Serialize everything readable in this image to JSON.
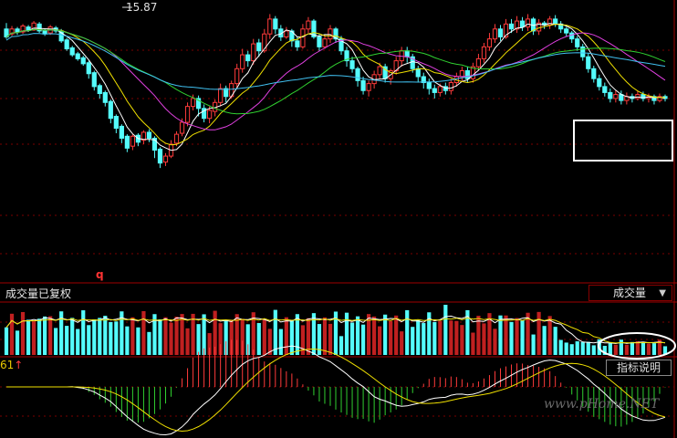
{
  "chart_data": {
    "type": "candlestick",
    "price_label": "15.87",
    "volume_title": "成交量已复权",
    "indicator_select": "成交量",
    "indicator_value": "61",
    "indicator_hint_label": "指标说明",
    "marker": "q",
    "watermark": "www.pHome.NET",
    "candles": [
      [
        150,
        142,
        156,
        140
      ],
      [
        145,
        150,
        153,
        143
      ],
      [
        150,
        147,
        152,
        144
      ],
      [
        147,
        153,
        155,
        145
      ],
      [
        152,
        149,
        154,
        147
      ],
      [
        149,
        156,
        158,
        148
      ],
      [
        155,
        148,
        157,
        146
      ],
      [
        148,
        145,
        150,
        143
      ],
      [
        146,
        152,
        154,
        144
      ],
      [
        151,
        148,
        153,
        146
      ],
      [
        148,
        138,
        150,
        136
      ],
      [
        139,
        130,
        141,
        128
      ],
      [
        131,
        124,
        133,
        122
      ],
      [
        125,
        120,
        127,
        118
      ],
      [
        121,
        115,
        123,
        113
      ],
      [
        116,
        105,
        118,
        100
      ],
      [
        106,
        92,
        108,
        88
      ],
      [
        93,
        85,
        95,
        80
      ],
      [
        86,
        76,
        88,
        72
      ],
      [
        77,
        60,
        79,
        55
      ],
      [
        62,
        50,
        64,
        45
      ],
      [
        52,
        40,
        54,
        35
      ],
      [
        42,
        30,
        44,
        26
      ],
      [
        32,
        42,
        44,
        28
      ],
      [
        43,
        36,
        45,
        32
      ],
      [
        38,
        46,
        48,
        34
      ],
      [
        46,
        40,
        49,
        36
      ],
      [
        40,
        28,
        42,
        20
      ],
      [
        29,
        15,
        31,
        10
      ],
      [
        16,
        22,
        25,
        12
      ],
      [
        22,
        34,
        38,
        20
      ],
      [
        35,
        44,
        47,
        32
      ],
      [
        45,
        56,
        60,
        42
      ],
      [
        56,
        72,
        76,
        52
      ],
      [
        72,
        80,
        84,
        68
      ],
      [
        80,
        70,
        83,
        62
      ],
      [
        70,
        60,
        74,
        56
      ],
      [
        60,
        68,
        72,
        55
      ],
      [
        67,
        76,
        79,
        62
      ],
      [
        76,
        90,
        95,
        72
      ],
      [
        90,
        82,
        93,
        76
      ],
      [
        82,
        95,
        98,
        80
      ],
      [
        95,
        110,
        115,
        90
      ],
      [
        110,
        124,
        130,
        106
      ],
      [
        124,
        118,
        128,
        112
      ],
      [
        118,
        135,
        140,
        114
      ],
      [
        136,
        128,
        140,
        122
      ],
      [
        128,
        145,
        150,
        126
      ],
      [
        145,
        160,
        165,
        140
      ],
      [
        160,
        150,
        163,
        145
      ],
      [
        150,
        142,
        154,
        138
      ],
      [
        142,
        148,
        152,
        140
      ],
      [
        148,
        138,
        150,
        132
      ],
      [
        138,
        132,
        142,
        128
      ],
      [
        132,
        150,
        155,
        130
      ],
      [
        150,
        158,
        162,
        146
      ],
      [
        158,
        142,
        160,
        140
      ],
      [
        142,
        132,
        145,
        128
      ],
      [
        132,
        140,
        144,
        130
      ],
      [
        140,
        150,
        154,
        136
      ],
      [
        150,
        140,
        152,
        136
      ],
      [
        140,
        128,
        143,
        124
      ],
      [
        128,
        118,
        132,
        112
      ],
      [
        118,
        110,
        122,
        106
      ],
      [
        110,
        98,
        112,
        92
      ],
      [
        98,
        88,
        102,
        84
      ],
      [
        88,
        95,
        98,
        82
      ],
      [
        95,
        104,
        108,
        90
      ],
      [
        104,
        112,
        116,
        100
      ],
      [
        112,
        100,
        115,
        96
      ],
      [
        100,
        108,
        110,
        94
      ],
      [
        108,
        118,
        122,
        104
      ],
      [
        118,
        128,
        132,
        112
      ],
      [
        128,
        122,
        132,
        116
      ],
      [
        122,
        110,
        125,
        106
      ],
      [
        110,
        102,
        113,
        96
      ],
      [
        102,
        96,
        106,
        90
      ],
      [
        96,
        90,
        100,
        84
      ],
      [
        90,
        86,
        94,
        80
      ],
      [
        86,
        92,
        95,
        82
      ],
      [
        92,
        88,
        96,
        84
      ],
      [
        88,
        96,
        100,
        84
      ],
      [
        96,
        102,
        106,
        92
      ],
      [
        102,
        108,
        112,
        98
      ],
      [
        108,
        100,
        112,
        96
      ],
      [
        100,
        112,
        116,
        96
      ],
      [
        112,
        120,
        125,
        108
      ],
      [
        120,
        132,
        136,
        116
      ],
      [
        132,
        140,
        146,
        128
      ],
      [
        140,
        150,
        155,
        136
      ],
      [
        150,
        142,
        154,
        138
      ],
      [
        142,
        155,
        160,
        140
      ],
      [
        155,
        150,
        160,
        146
      ],
      [
        150,
        158,
        163,
        146
      ],
      [
        158,
        152,
        162,
        148
      ],
      [
        152,
        160,
        165,
        148
      ],
      [
        160,
        148,
        162,
        144
      ],
      [
        148,
        156,
        160,
        144
      ],
      [
        156,
        154,
        158,
        150
      ],
      [
        154,
        160,
        163,
        150
      ],
      [
        160,
        155,
        164,
        152
      ],
      [
        155,
        150,
        158,
        146
      ],
      [
        150,
        146,
        152,
        142
      ],
      [
        146,
        140,
        148,
        136
      ],
      [
        140,
        132,
        143,
        128
      ],
      [
        132,
        122,
        135,
        118
      ],
      [
        122,
        110,
        126,
        106
      ],
      [
        110,
        100,
        113,
        96
      ],
      [
        100,
        92,
        104,
        88
      ],
      [
        92,
        86,
        96,
        82
      ],
      [
        86,
        80,
        90,
        76
      ],
      [
        80,
        84,
        88,
        76
      ],
      [
        84,
        78,
        88,
        74
      ],
      [
        78,
        82,
        86,
        74
      ],
      [
        82,
        80,
        85,
        76
      ],
      [
        80,
        84,
        88,
        78
      ],
      [
        84,
        80,
        87,
        77
      ],
      [
        80,
        82,
        85,
        76
      ],
      [
        82,
        78,
        84,
        74
      ],
      [
        78,
        82,
        85,
        76
      ],
      [
        82,
        80,
        84,
        77
      ]
    ],
    "ma_lines": [
      {
        "name": "MA5",
        "color": "#ffffff"
      },
      {
        "name": "MA10",
        "color": "#f0e000"
      },
      {
        "name": "MA20",
        "color": "#e040e0"
      },
      {
        "name": "MA30",
        "color": "#30d030"
      },
      {
        "name": "MA60",
        "color": "#40c0f0"
      }
    ]
  }
}
